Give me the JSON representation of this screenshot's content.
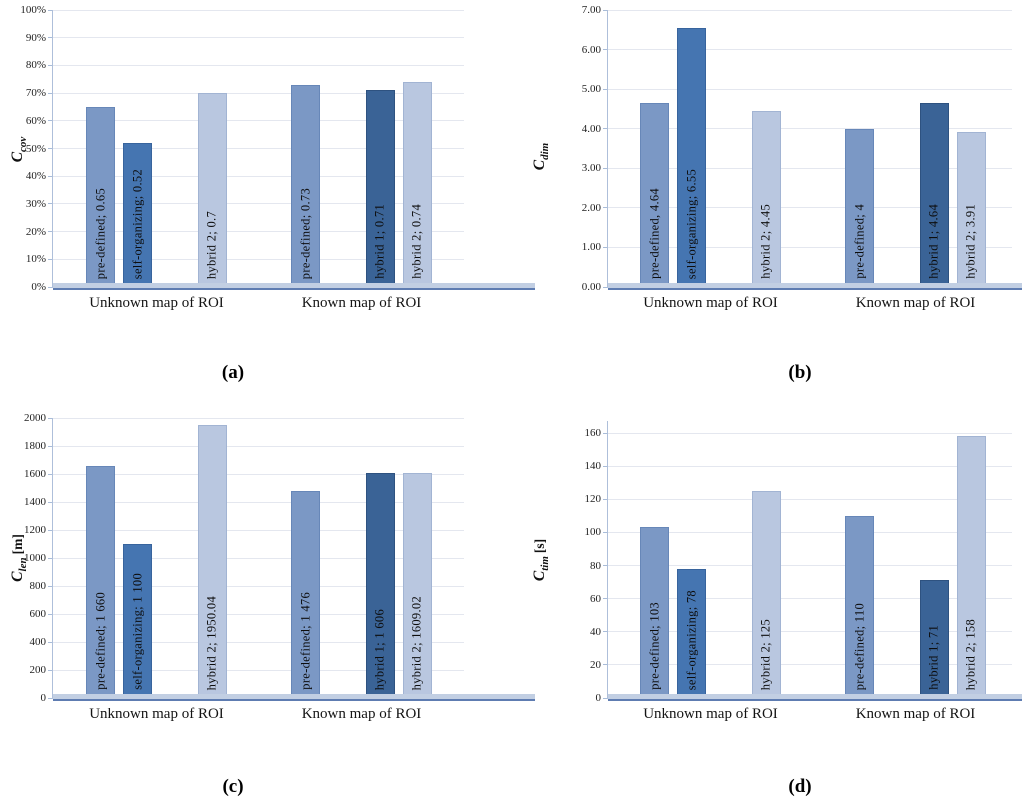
{
  "figure": {
    "group_labels": [
      "Unknown map of ROI",
      "Known map of ROI"
    ],
    "series_styles": [
      {
        "name": "pre-defined",
        "color": "#7b98c5",
        "border": "#6787b8"
      },
      {
        "name": "self-organizing",
        "color": "#4575b1",
        "border": "#38649d"
      },
      {
        "name": "hybrid 1",
        "color": "#3a6396",
        "border": "#2e5280"
      },
      {
        "name": "hybrid 2",
        "color": "#b9c7e0",
        "border": "#a2b4d3"
      }
    ]
  },
  "chart_data": [
    {
      "id": "a",
      "type": "bar",
      "caption": "(a)",
      "ylabel": {
        "base": "C",
        "sub": "cov",
        "unit": ""
      },
      "tick_labels": [
        "0%",
        "10%",
        "20%",
        "30%",
        "40%",
        "50%",
        "60%",
        "70%",
        "80%",
        "90%",
        "100%"
      ],
      "tick_max": 100,
      "categories": [
        "Unknown map of ROI",
        "Known map of ROI"
      ],
      "series": [
        {
          "name": "pre-defined",
          "values": [
            65,
            73
          ],
          "labels": [
            "pre-defined; 0.65",
            "pre-defined; 0.73"
          ]
        },
        {
          "name": "self-organizing",
          "values": [
            52,
            null
          ],
          "labels": [
            "self-organizing; 0.52",
            null
          ]
        },
        {
          "name": "hybrid 1",
          "values": [
            null,
            71
          ],
          "labels": [
            null,
            "hybrid 1; 0.71"
          ]
        },
        {
          "name": "hybrid 2",
          "values": [
            70,
            74
          ],
          "labels": [
            "hybrid 2; 0.7",
            "hybrid 2; 0.74"
          ]
        }
      ]
    },
    {
      "id": "b",
      "type": "bar",
      "caption": "(b)",
      "ylabel": {
        "base": "C",
        "sub": "dim",
        "unit": ""
      },
      "tick_labels": [
        "0.00",
        "1.00",
        "2.00",
        "3.00",
        "4.00",
        "5.00",
        "6.00",
        "7.00"
      ],
      "tick_max": 7,
      "categories": [
        "Unknown map of ROI",
        "Known map of ROI"
      ],
      "series": [
        {
          "name": "pre-defined",
          "values": [
            4.64,
            4
          ],
          "labels": [
            "pre-defined, 4.64",
            "pre-defined; 4"
          ]
        },
        {
          "name": "self-organizing",
          "values": [
            6.55,
            null
          ],
          "labels": [
            "self-organizing; 6.55",
            null
          ]
        },
        {
          "name": "hybrid 1",
          "values": [
            null,
            4.64
          ],
          "labels": [
            null,
            "hybrid 1; 4.64"
          ]
        },
        {
          "name": "hybrid 2",
          "values": [
            4.45,
            3.91
          ],
          "labels": [
            "hybrid 2; 4.45",
            "hybrid 2; 3.91"
          ]
        }
      ]
    },
    {
      "id": "c",
      "type": "bar",
      "caption": "(c)",
      "ylabel": {
        "base": "C",
        "sub": "len",
        "unit": "[m]"
      },
      "tick_labels": [
        "0",
        "200",
        "400",
        "600",
        "800",
        "1000",
        "1200",
        "1400",
        "1600",
        "1800",
        "2000"
      ],
      "tick_max": 2000,
      "categories": [
        "Unknown map of ROI",
        "Known map of ROI"
      ],
      "series": [
        {
          "name": "pre-defined",
          "values": [
            1660,
            1476
          ],
          "labels": [
            "pre-defined; 1 660",
            "pre-defined; 1 476"
          ]
        },
        {
          "name": "self-organizing",
          "values": [
            1100,
            null
          ],
          "labels": [
            "self-organizing; 1 100",
            null
          ]
        },
        {
          "name": "hybrid 1",
          "values": [
            null,
            1606
          ],
          "labels": [
            null,
            "hybrid 1; 1 606"
          ]
        },
        {
          "name": "hybrid 2",
          "values": [
            1950.04,
            1609.02
          ],
          "labels": [
            "hybrid 2; 1950.04",
            "hybrid 2; 1609.02"
          ]
        }
      ]
    },
    {
      "id": "d",
      "type": "bar",
      "caption": "(d)",
      "ylabel": {
        "base": "C",
        "sub": "tim",
        "unit": "[s]"
      },
      "tick_labels": [
        "0",
        "20",
        "40",
        "60",
        "80",
        "100",
        "120",
        "140",
        "160"
      ],
      "tick_max": 160,
      "categories": [
        "Unknown map of ROI",
        "Known map of ROI"
      ],
      "series": [
        {
          "name": "pre-defined",
          "values": [
            103,
            110
          ],
          "labels": [
            "pre-defined; 103",
            "pre-defined; 110"
          ]
        },
        {
          "name": "self-organizing",
          "values": [
            78,
            null
          ],
          "labels": [
            "self-organizing; 78",
            null
          ]
        },
        {
          "name": "hybrid 1",
          "values": [
            null,
            71
          ],
          "labels": [
            null,
            "hybrid 1; 71"
          ]
        },
        {
          "name": "hybrid 2",
          "values": [
            125,
            158
          ],
          "labels": [
            "hybrid 2; 125",
            "hybrid 2; 158"
          ]
        }
      ]
    }
  ]
}
